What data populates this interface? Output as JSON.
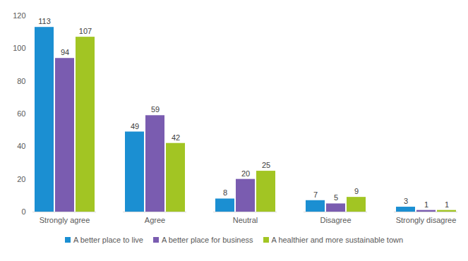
{
  "chart_data": {
    "type": "bar",
    "categories": [
      "Strongly agree",
      "Agree",
      "Neutral",
      "Disagree",
      "Strongly disagree"
    ],
    "series": [
      {
        "name": "A better place to live",
        "color": "#1b8fd2",
        "values": [
          113,
          49,
          8,
          7,
          3
        ]
      },
      {
        "name": "A better place for business",
        "color": "#7a5cb0",
        "values": [
          94,
          59,
          20,
          5,
          1
        ]
      },
      {
        "name": "A healthier and more sustainable town",
        "color": "#a2c523",
        "values": [
          107,
          42,
          25,
          9,
          1
        ]
      }
    ],
    "ylim": [
      0,
      120
    ],
    "yticks": [
      0,
      20,
      40,
      60,
      80,
      100,
      120
    ],
    "grid": false,
    "legend": "bottom",
    "data_labels": true
  }
}
